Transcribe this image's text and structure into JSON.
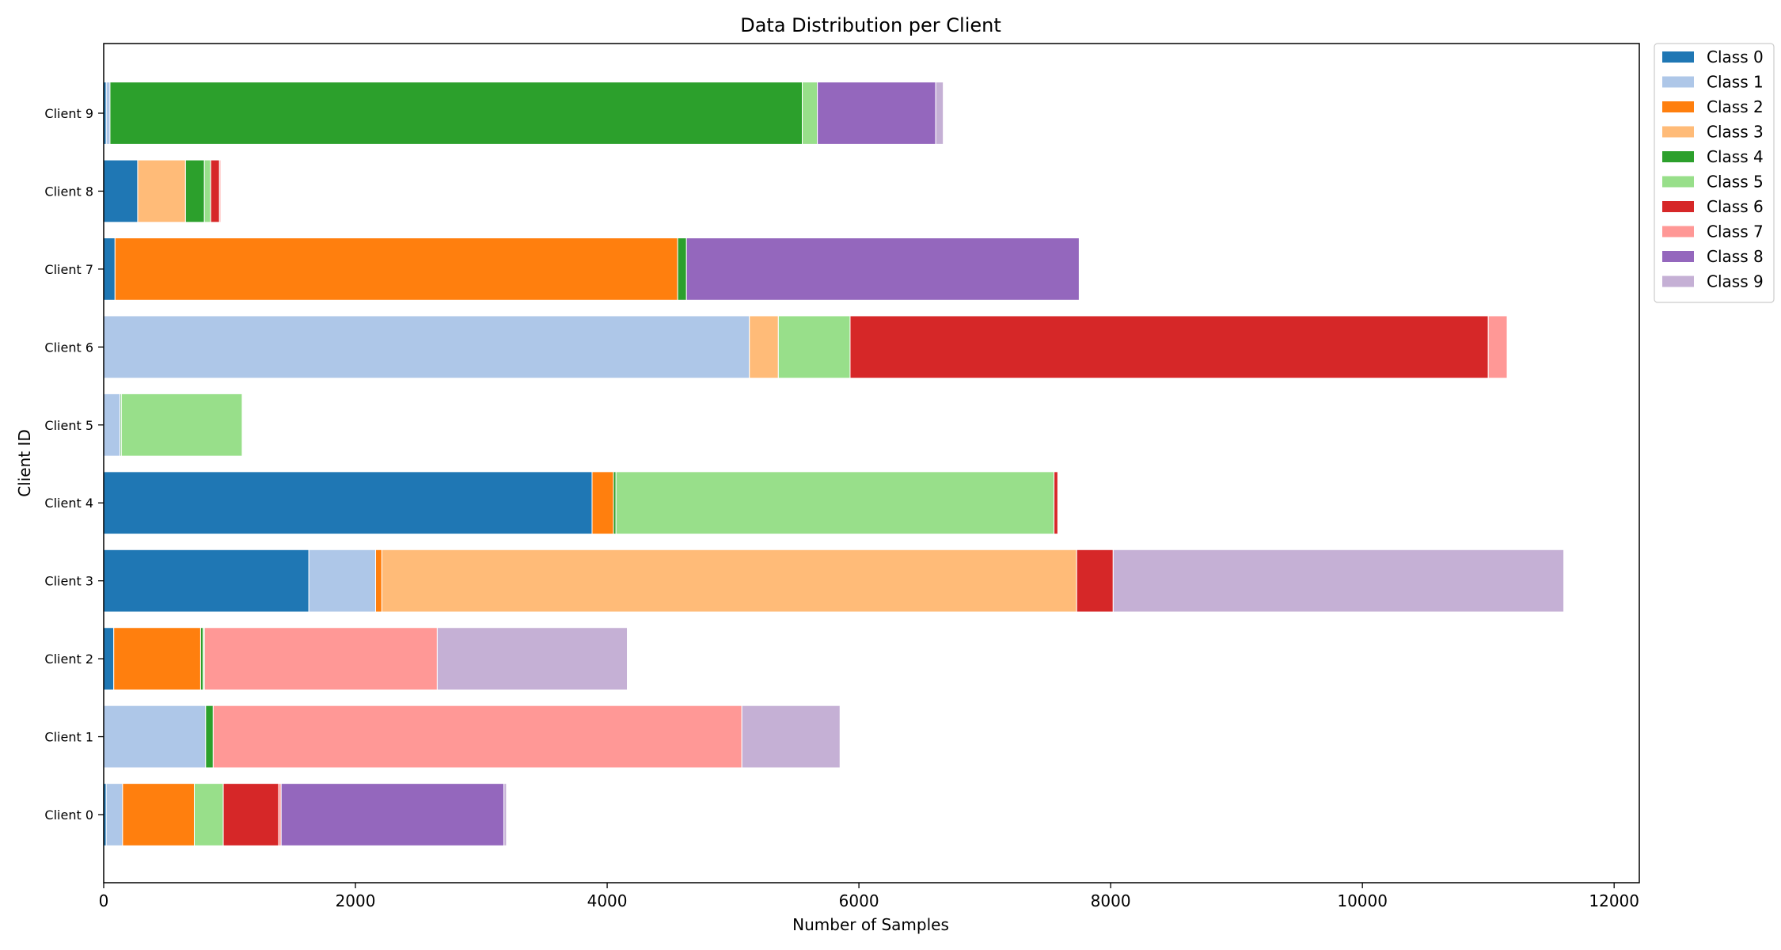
{
  "chart_data": {
    "type": "bar",
    "orientation": "horizontal",
    "stacked": true,
    "title": "Data Distribution per Client",
    "xlabel": "Number of Samples",
    "ylabel": "Client ID",
    "xlim": [
      0,
      12200
    ],
    "x_ticks": [
      0,
      2000,
      4000,
      6000,
      8000,
      10000,
      12000
    ],
    "x_tick_labels": [
      "0",
      "2000",
      "4000",
      "6000",
      "8000",
      "10000",
      "12000"
    ],
    "categories": [
      "Client 0",
      "Client 1",
      "Client 2",
      "Client 3",
      "Client 4",
      "Client 5",
      "Client 6",
      "Client 7",
      "Client 8",
      "Client 9"
    ],
    "grid": false,
    "legend_position": "outside-top-right",
    "series": [
      {
        "name": "Class 0",
        "color": "#1f77b4",
        "values": [
          20,
          0,
          80,
          1630,
          3880,
          0,
          0,
          90,
          270,
          20
        ]
      },
      {
        "name": "Class 1",
        "color": "#aec7e8",
        "values": [
          130,
          810,
          0,
          530,
          0,
          130,
          5130,
          0,
          0,
          30
        ]
      },
      {
        "name": "Class 2",
        "color": "#ff7f0e",
        "values": [
          570,
          0,
          690,
          50,
          170,
          0,
          0,
          4470,
          0,
          0
        ]
      },
      {
        "name": "Class 3",
        "color": "#ffbb78",
        "values": [
          0,
          0,
          0,
          5520,
          0,
          0,
          230,
          0,
          380,
          0
        ]
      },
      {
        "name": "Class 4",
        "color": "#2ca02c",
        "values": [
          0,
          60,
          20,
          0,
          20,
          10,
          0,
          70,
          150,
          5500
        ]
      },
      {
        "name": "Class 5",
        "color": "#98df8a",
        "values": [
          230,
          0,
          10,
          0,
          3480,
          960,
          570,
          0,
          50,
          120
        ]
      },
      {
        "name": "Class 6",
        "color": "#d62728",
        "values": [
          440,
          0,
          0,
          290,
          30,
          0,
          5070,
          0,
          70,
          0
        ]
      },
      {
        "name": "Class 7",
        "color": "#ff9896",
        "values": [
          20,
          4200,
          1850,
          0,
          0,
          0,
          150,
          0,
          10,
          0
        ]
      },
      {
        "name": "Class 8",
        "color": "#9467bd",
        "values": [
          1770,
          0,
          0,
          0,
          0,
          0,
          0,
          3120,
          0,
          940
        ]
      },
      {
        "name": "Class 9",
        "color": "#c5b0d5",
        "values": [
          20,
          780,
          1510,
          3580,
          0,
          0,
          0,
          0,
          0,
          60
        ]
      }
    ]
  }
}
